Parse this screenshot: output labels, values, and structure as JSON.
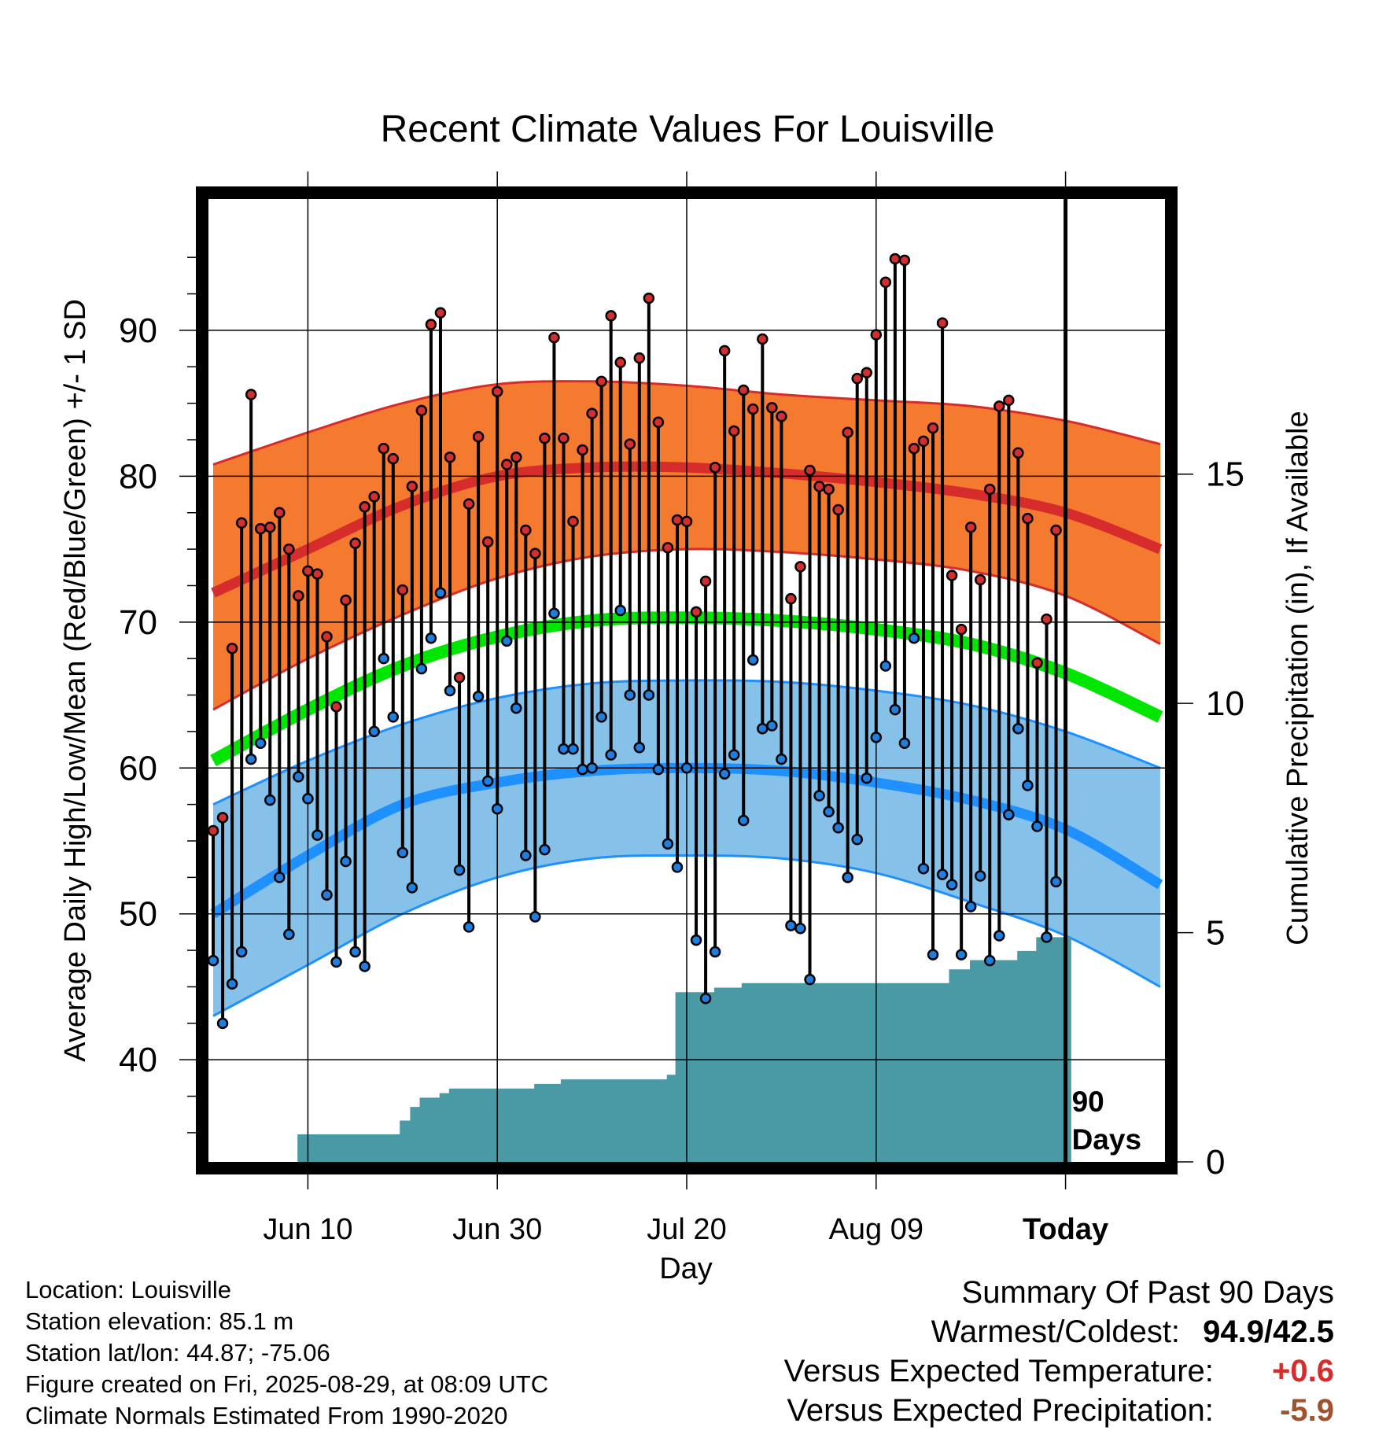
{
  "chart_data": {
    "type": "line",
    "title": "Recent Climate Values For Louisville",
    "xlabel": "Day",
    "ylabel": "Average Daily High/Low/Mean (Red/Blue/Green) +/- 1 SD",
    "y2label": "Cumulative Precipitation (in), If Available",
    "ylim": [
      33,
      99
    ],
    "y2lim": [
      0,
      21
    ],
    "xlim": [
      -0.5,
      100.5
    ],
    "x_ticks": [
      {
        "day": 10,
        "label": "Jun 10"
      },
      {
        "day": 30,
        "label": "Jun 30"
      },
      {
        "day": 50,
        "label": "Jul 20"
      },
      {
        "day": 70,
        "label": "Aug 09"
      },
      {
        "day": 90,
        "label": "Today"
      }
    ],
    "y_ticks": [
      40,
      50,
      60,
      70,
      80,
      90
    ],
    "y2_ticks": [
      0,
      5,
      10,
      15
    ],
    "today_marker": {
      "day": 90,
      "label": "90\nDays"
    },
    "grid": true,
    "normals": {
      "days": [
        0,
        10,
        20,
        30,
        40,
        50,
        60,
        70,
        80,
        90,
        100
      ],
      "high_mean": [
        72,
        75,
        78,
        80,
        80.6,
        80.6,
        80.2,
        79.6,
        78.8,
        77.5,
        75
      ],
      "high_sd_upper": [
        80.8,
        83,
        85,
        86.3,
        86.5,
        86.2,
        85.6,
        85.2,
        84.8,
        83.8,
        82.2
      ],
      "high_sd_lower": [
        64,
        67.5,
        70.5,
        73,
        74.5,
        75,
        74.8,
        74.3,
        73.5,
        71.8,
        68.5
      ],
      "mean": [
        60.5,
        64,
        67,
        69,
        70.1,
        70.3,
        70.1,
        69.5,
        68.5,
        66.5,
        63.5
      ],
      "low_mean": [
        50,
        54,
        57.5,
        59,
        59.8,
        60,
        59.8,
        59,
        57.8,
        55.8,
        52
      ],
      "low_sd_upper": [
        57.5,
        60.5,
        63,
        64.8,
        65.8,
        66,
        65.9,
        65.3,
        64.3,
        62.5,
        60
      ],
      "low_sd_lower": [
        43,
        46.5,
        50,
        52.5,
        53.8,
        54,
        53.8,
        52.8,
        50.8,
        48.5,
        45
      ]
    },
    "series": [
      {
        "name": "High",
        "start_day": 0,
        "values": [
          55.7,
          56.6,
          68.2,
          76.8,
          85.6,
          76.4,
          76.5,
          77.5,
          75.0,
          71.8,
          73.5,
          73.3,
          69.0,
          64.2,
          71.5,
          75.4,
          77.9,
          78.6,
          81.9,
          81.2,
          72.2,
          79.3,
          84.5,
          90.4,
          91.2,
          81.3,
          66.2,
          78.1,
          82.7,
          75.5,
          85.8,
          80.8,
          81.3,
          76.3,
          74.7,
          82.6,
          89.5,
          82.6,
          76.9,
          81.8,
          84.3,
          86.5,
          91.0,
          87.8,
          82.2,
          88.1,
          92.2,
          83.7,
          75.1,
          77.0,
          76.9,
          70.7,
          72.8,
          80.6,
          88.6,
          83.1,
          85.9,
          84.6,
          89.4,
          84.7,
          84.1,
          71.6,
          73.8,
          80.4,
          79.3,
          79.1,
          77.7,
          83.0,
          86.7,
          87.1,
          89.7,
          93.3,
          94.9,
          94.8,
          81.9,
          82.4,
          83.3,
          90.5,
          73.2,
          69.5,
          76.5,
          72.9,
          79.1,
          84.8,
          85.2,
          81.6,
          77.1,
          67.2,
          70.2,
          76.3
        ]
      },
      {
        "name": "Low",
        "start_day": 0,
        "values": [
          46.8,
          42.5,
          45.2,
          47.4,
          60.6,
          61.7,
          57.8,
          52.5,
          48.6,
          59.4,
          57.9,
          55.4,
          51.3,
          46.7,
          53.6,
          47.4,
          46.4,
          62.5,
          67.5,
          63.5,
          54.2,
          51.8,
          66.8,
          68.9,
          72.0,
          65.3,
          53.0,
          49.1,
          64.9,
          59.1,
          57.2,
          68.7,
          64.1,
          54.0,
          49.8,
          54.4,
          70.6,
          61.3,
          61.3,
          59.9,
          60.0,
          63.5,
          60.9,
          70.8,
          65.0,
          61.4,
          65.0,
          59.9,
          54.8,
          53.2,
          60.0,
          48.2,
          44.2,
          47.4,
          59.6,
          60.9,
          56.4,
          67.4,
          62.7,
          62.9,
          60.6,
          49.2,
          49.0,
          45.5,
          58.1,
          57.0,
          55.9,
          52.5,
          55.1,
          59.3,
          62.1,
          67.0,
          64.0,
          61.7,
          68.9,
          53.1,
          47.2,
          52.7,
          52.0,
          47.2,
          50.5,
          52.6,
          46.8,
          48.5,
          56.8,
          62.7,
          58.8,
          56.0,
          48.4,
          52.2
        ]
      }
    ],
    "precipitation": {
      "days": [
        0,
        7.9,
        8.9,
        18.8,
        19.7,
        20.8,
        21.8,
        23.9,
        24.9,
        33.9,
        36.7,
        47.9,
        48.8,
        52.9,
        55.8,
        63.9,
        74.9,
        77.7,
        79.9,
        84.9,
        86.9,
        90.6
      ],
      "values": [
        0,
        0,
        0.6,
        0.6,
        0.9,
        1.2,
        1.4,
        1.5,
        1.6,
        1.7,
        1.8,
        1.9,
        3.7,
        3.8,
        3.9,
        3.9,
        3.9,
        4.2,
        4.4,
        4.6,
        4.9,
        5.1
      ]
    }
  },
  "footer": {
    "location": "Location: Louisville",
    "elevation": "Station elevation: 85.1 m",
    "latlon": "Station lat/lon: 44.87; -75.06",
    "created": "Figure created on Fri, 2025-08-29, at 08:09 UTC",
    "normals_period": "Climate Normals Estimated From 1990-2020"
  },
  "summary": {
    "title": "Summary Of Past 90 Days",
    "warm_cold_label": "Warmest/Coldest:",
    "warm_cold_value": "94.9/42.5",
    "temp_label": "Versus Expected Temperature:",
    "temp_value": "+0.6",
    "precip_label": "Versus Expected Precipitation:",
    "precip_value": "-5.9"
  },
  "colors": {
    "high": "#d62c2c",
    "high_band": "#f47a30",
    "mean": "#00e600",
    "low": "#1e90ff",
    "low_band": "#85c1e9",
    "precip": "#4a9aa5",
    "low_dot": "#1e7fe0",
    "high_dot": "#d32f2f"
  }
}
